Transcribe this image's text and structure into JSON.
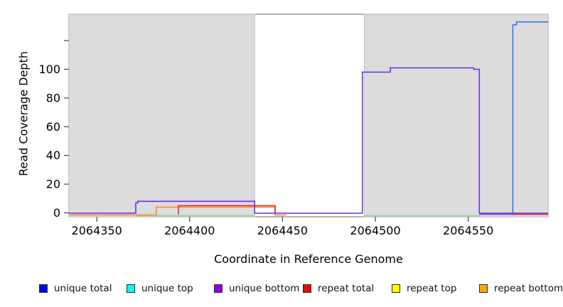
{
  "figure": {
    "title": "",
    "xlabel": "Coordinate in Reference Genome",
    "ylabel": "Read Coverage Depth"
  },
  "chart_data": {
    "type": "line",
    "title": "",
    "xlabel": "Coordinate in Reference Genome",
    "ylabel": "Read Coverage Depth",
    "xlim": [
      2064335,
      2064593
    ],
    "ylim": [
      0,
      138
    ],
    "grid": false,
    "legend_position": "bottom",
    "x_ticks": [
      2064350,
      2064400,
      2064450,
      2064500,
      2064550
    ],
    "x_tick_labels": [
      "2064350",
      "2064400",
      "2064450",
      "2064500",
      "2064550"
    ],
    "y_ticks": [
      0,
      20,
      40,
      60,
      80,
      100,
      120
    ],
    "y_tick_labels": [
      "0",
      "20",
      "40",
      "60",
      "80",
      "100",
      ""
    ],
    "background_color": "#ffffff",
    "box_color": "#8c8c8c",
    "coverage_regions": [
      {
        "x0": 2064335,
        "x1": 2064435,
        "fill": "#dcdcdc",
        "border": "#c2c2c2"
      },
      {
        "x0": 2064494,
        "x1": 2064593,
        "fill": "#dcdcdc",
        "border": "#c2c2c2"
      }
    ],
    "series": [
      {
        "name": "unique total",
        "legend_color": "#0000f0",
        "line_color": "#3c76f0",
        "segments": [
          [
            [
              2064556,
              0
            ],
            [
              2064574,
              0
            ],
            [
              2064574,
              131
            ],
            [
              2064576,
              131
            ],
            [
              2064576,
              133
            ],
            [
              2064593,
              133
            ]
          ]
        ]
      },
      {
        "name": "unique top",
        "legend_color": "#00ffff",
        "line_color": "#82d9a2",
        "segments": [
          [
            [
              2064371,
              0
            ],
            [
              2064435,
              0
            ]
          ],
          [
            [
              2064494,
              0
            ],
            [
              2064556,
              0
            ]
          ]
        ]
      },
      {
        "name": "unique bottom",
        "legend_color": "#9400d3",
        "line_color": "#6d2fe3",
        "segments": [
          [
            [
              2064335,
              0
            ],
            [
              2064371,
              0
            ],
            [
              2064371,
              7
            ],
            [
              2064372,
              7
            ],
            [
              2064372,
              8
            ],
            [
              2064435,
              8
            ],
            [
              2064435,
              0
            ],
            [
              2064493,
              0
            ],
            [
              2064493,
              98
            ],
            [
              2064508,
              98
            ],
            [
              2064508,
              101
            ],
            [
              2064553,
              101
            ],
            [
              2064553,
              100
            ],
            [
              2064556,
              100
            ],
            [
              2064556,
              0
            ],
            [
              2064593,
              0
            ]
          ]
        ]
      },
      {
        "name": "repeat total",
        "legend_color": "#ff0000",
        "line_color": "#e8233a",
        "segments": [
          [
            [
              2064394,
              0
            ],
            [
              2064394,
              5
            ],
            [
              2064446,
              5
            ],
            [
              2064446,
              0
            ]
          ],
          [
            [
              2064556,
              0
            ],
            [
              2064593,
              0
            ]
          ]
        ]
      },
      {
        "name": "repeat top",
        "legend_color": "#ffff00",
        "line_color": "#e8e800",
        "segments": [
          [
            [
              2064371,
              0
            ],
            [
              2064435,
              0
            ]
          ]
        ]
      },
      {
        "name": "repeat bottom",
        "legend_color": "#ffa500",
        "line_color": "#ff8d26",
        "segments": [
          [
            [
              2064335,
              0
            ],
            [
              2064382,
              0
            ],
            [
              2064382,
              4
            ],
            [
              2064446,
              4
            ],
            [
              2064446,
              0
            ],
            [
              2064452,
              0
            ]
          ]
        ]
      }
    ]
  }
}
